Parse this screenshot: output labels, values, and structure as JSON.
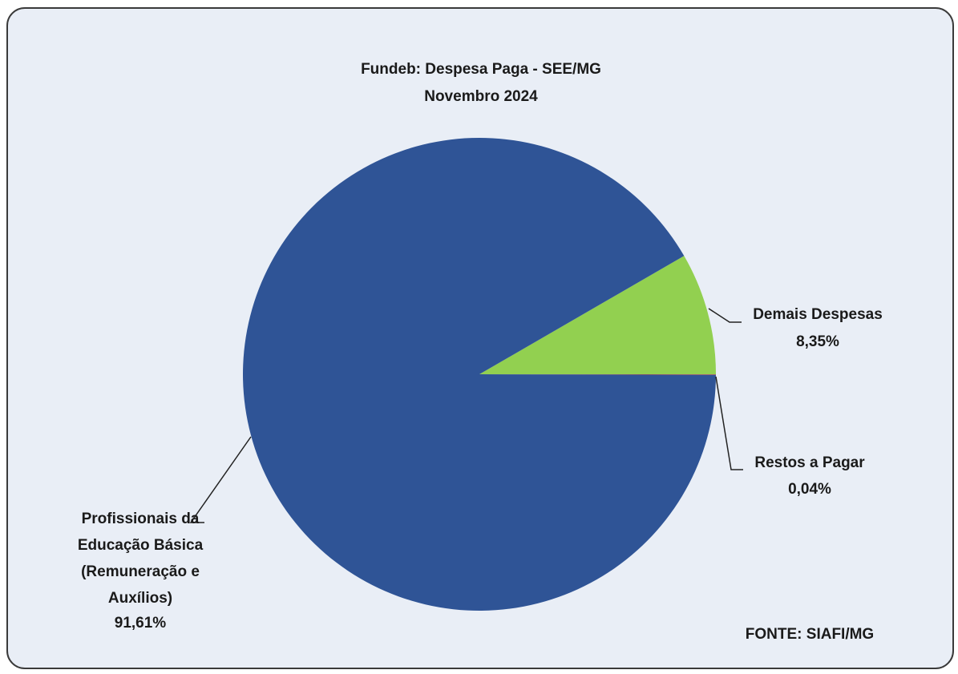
{
  "chart_data": {
    "type": "pie",
    "title": "Fundeb: Despesa Paga - SEE/MG",
    "subtitle": "Novembro 2024",
    "categories": [
      "Demais Despesas",
      "Restos a Pagar",
      "Profissionais da Educação Básica (Remuneração e Auxílios)"
    ],
    "values": [
      8.35,
      0.04,
      91.61
    ],
    "value_labels": [
      "8,35%",
      "0,04%",
      "91,61%"
    ],
    "colors": [
      "#92d050",
      "#c0504d",
      "#2f5496"
    ],
    "source": "FONTE: SIAFI/MG"
  }
}
